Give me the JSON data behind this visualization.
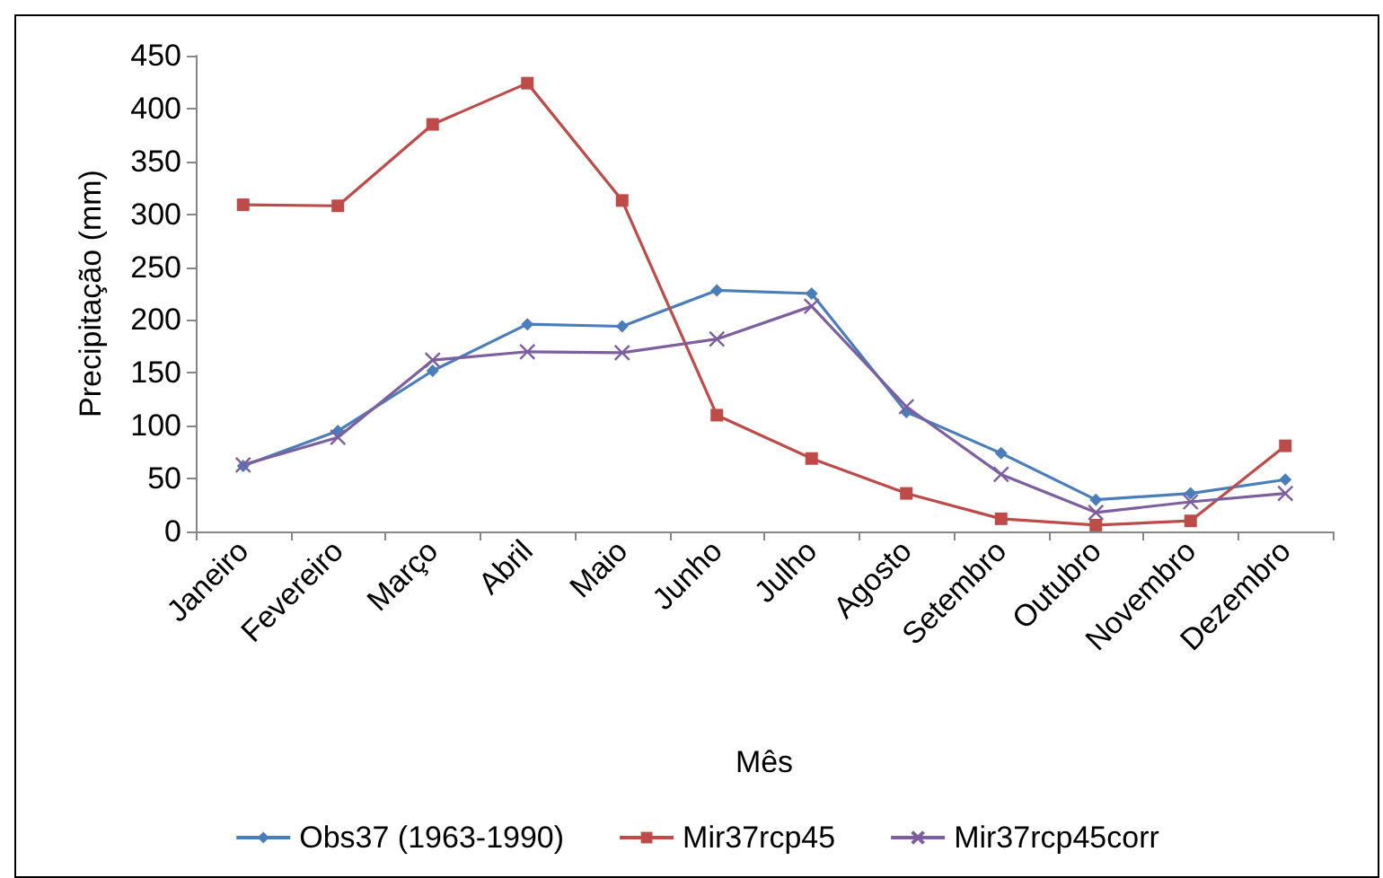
{
  "chart_data": {
    "type": "line",
    "xlabel": "Mês",
    "ylabel": "Precipitação (mm)",
    "categories": [
      "Janeiro",
      "Fevereiro",
      "Março",
      "Abril",
      "Maio",
      "Junho",
      "Julho",
      "Agosto",
      "Setembro",
      "Outubro",
      "Novembro",
      "Dezembro"
    ],
    "series": [
      {
        "name": "Obs37 (1963-1990)",
        "color": "#4a7ebb",
        "marker": "diamond",
        "values": [
          62,
          95,
          152,
          196,
          194,
          228,
          225,
          113,
          74,
          30,
          36,
          49
        ]
      },
      {
        "name": "Mir37rcp45",
        "color": "#be4b48",
        "marker": "square",
        "values": [
          309,
          308,
          385,
          424,
          313,
          110,
          69,
          36,
          12,
          6,
          10,
          81
        ]
      },
      {
        "name": "Mir37rcp45corr",
        "color": "#7d5fa0",
        "marker": "cross",
        "values": [
          63,
          89,
          162,
          170,
          169,
          182,
          213,
          118,
          54,
          18,
          28,
          36
        ]
      }
    ],
    "ylim": [
      0,
      450
    ],
    "yticks": [
      0,
      50,
      100,
      150,
      200,
      250,
      300,
      350,
      400,
      450
    ],
    "grid": false,
    "legend": "bottom",
    "line_style": "solid"
  }
}
